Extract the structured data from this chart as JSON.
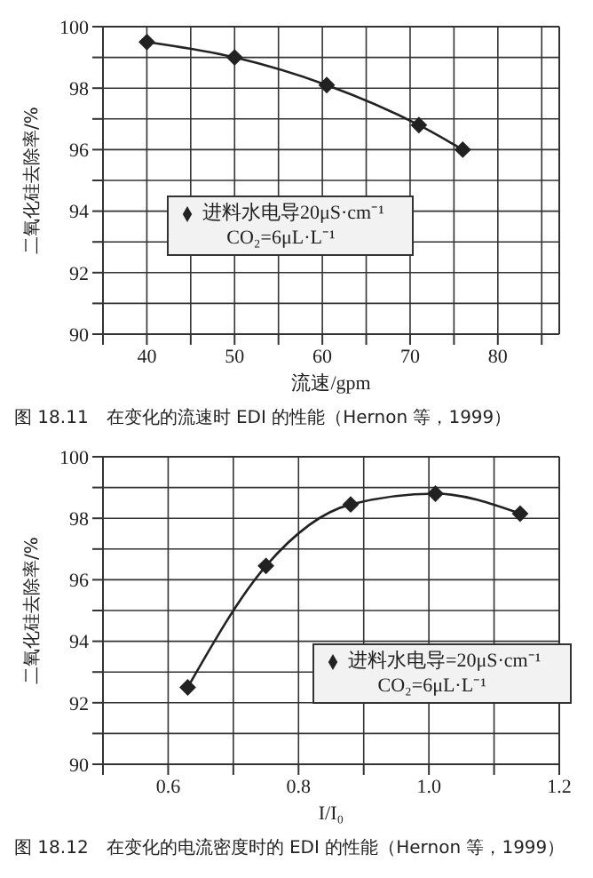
{
  "chart_data": [
    {
      "type": "line",
      "xlabel": "流速/gpm",
      "ylabel": "二氧化硅去除率/%",
      "annotations": [
        "图 18.11　在变化的流速时 EDI 的性能（Hernon 等，1999）"
      ],
      "x": [
        40,
        50,
        60.5,
        71,
        76
      ],
      "series": [
        {
          "name": "进料水电导20μS·cm⁻¹ CO₂=6μL·L⁻¹",
          "color": "#222222",
          "values": [
            99.5,
            99.0,
            98.1,
            96.8,
            96.0
          ]
        }
      ],
      "xlim": [
        35,
        87
      ],
      "xticks": [
        {
          "value": 35,
          "label": null
        },
        40,
        {
          "value": 45,
          "label": null
        },
        50,
        {
          "value": 55,
          "label": null
        },
        60,
        {
          "value": 65,
          "label": null
        },
        70,
        {
          "value": 75,
          "label": null
        },
        80,
        {
          "value": 85,
          "label": null
        }
      ],
      "ylim": [
        90,
        100
      ],
      "yticks": [
        90,
        {
          "value": 91,
          "label": null
        },
        92,
        {
          "value": 93,
          "label": null
        },
        94,
        {
          "value": 95,
          "label": null
        },
        96,
        {
          "value": 97,
          "label": null
        },
        98,
        {
          "value": 99,
          "label": null
        },
        100
      ],
      "grid": true,
      "legend": "left",
      "marker": "diamond",
      "line_style": "solid"
    },
    {
      "type": "line",
      "xlabel": "I/I₀",
      "ylabel": "二氧化硅去除率/%",
      "annotations": [
        "图 18.12　在变化的电流密度时的 EDI 的性能（Hernon 等，1999）"
      ],
      "x": [
        0.63,
        0.75,
        0.88,
        1.01,
        1.14
      ],
      "series": [
        {
          "name": "进料水电导=20μS·cm⁻¹ CO₂=6μL·L⁻¹",
          "color": "#222222",
          "values": [
            92.5,
            96.45,
            98.45,
            98.8,
            98.15
          ]
        }
      ],
      "xlim": [
        0.5,
        1.2
      ],
      "xticks": [
        {
          "value": 0.5,
          "label": null
        },
        0.6,
        {
          "value": 0.7,
          "label": null
        },
        0.8,
        {
          "value": 0.9,
          "label": null
        },
        {
          "value": 1,
          "label": "1.0"
        },
        {
          "value": 1.1,
          "label": null
        },
        1.2
      ],
      "ylim": [
        90,
        100
      ],
      "yticks": [
        90,
        {
          "value": 91,
          "label": null
        },
        92,
        {
          "value": 93,
          "label": null
        },
        94,
        {
          "value": 95,
          "label": null
        },
        96,
        {
          "value": 97,
          "label": null
        },
        98,
        {
          "value": 99,
          "label": null
        },
        100
      ],
      "grid": true,
      "legend": "right",
      "marker": "diamond",
      "line_style": "solid"
    }
  ]
}
